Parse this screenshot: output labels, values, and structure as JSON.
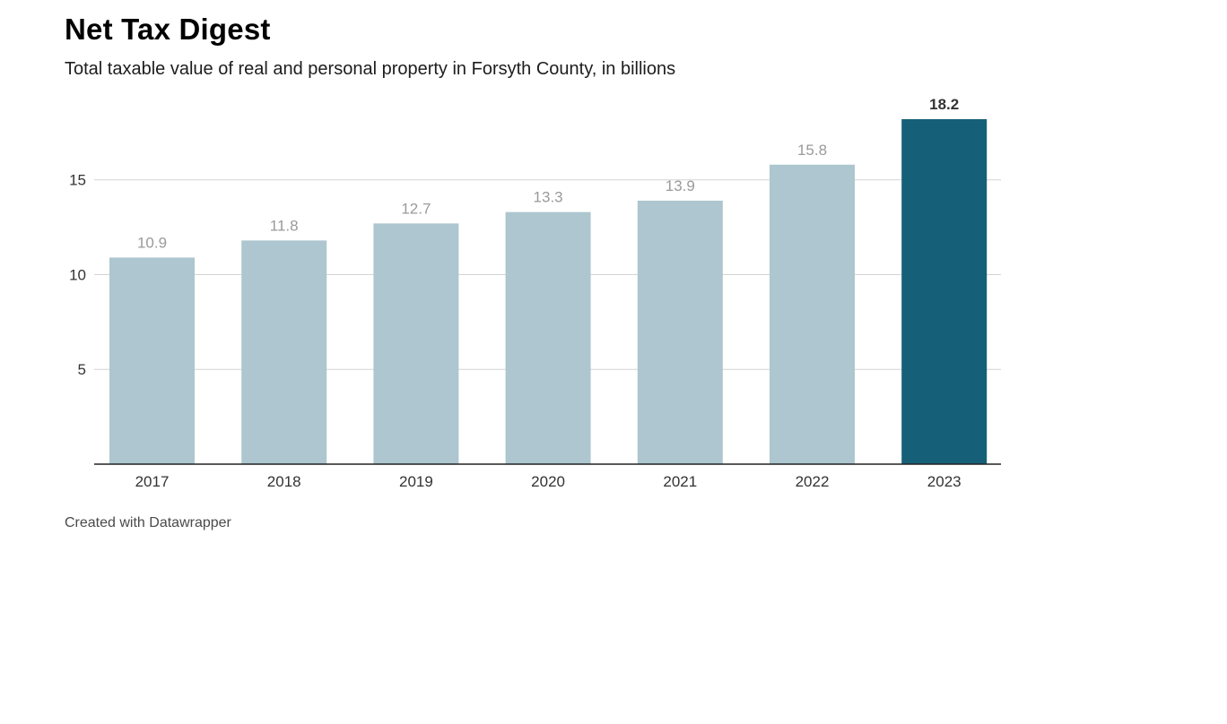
{
  "page": {
    "title": "Net Tax Digest",
    "subtitle": "Total taxable value of real and personal property in Forsyth County, in billions",
    "footer": "Created with Datawrapper"
  },
  "chart_data": {
    "type": "bar",
    "title": "Net Tax Digest",
    "subtitle": "Total taxable value of real and personal property in Forsyth County, in billions",
    "categories": [
      "2017",
      "2018",
      "2019",
      "2020",
      "2021",
      "2022",
      "2023"
    ],
    "series": [
      {
        "values": [
          10.9,
          11.8,
          12.7,
          13.3,
          13.9,
          15.8,
          18.2
        ]
      }
    ],
    "value_labels": [
      "10.9",
      "11.8",
      "12.7",
      "13.3",
      "13.9",
      "15.8",
      "18.2"
    ],
    "highlight_index": 6,
    "y_ticks": [
      5,
      10,
      15
    ],
    "y_tick_labels": [
      "5",
      "10",
      "15"
    ],
    "ylim": [
      0,
      18.2
    ],
    "grid": true,
    "xlabel": "",
    "ylabel": "",
    "colors": {
      "bar": "#adc6cf",
      "highlight": "#165f78",
      "grid": "#d4d4d4",
      "axis": "#222222",
      "label": "#9a9a9a",
      "highlight_label": "#333333"
    }
  }
}
